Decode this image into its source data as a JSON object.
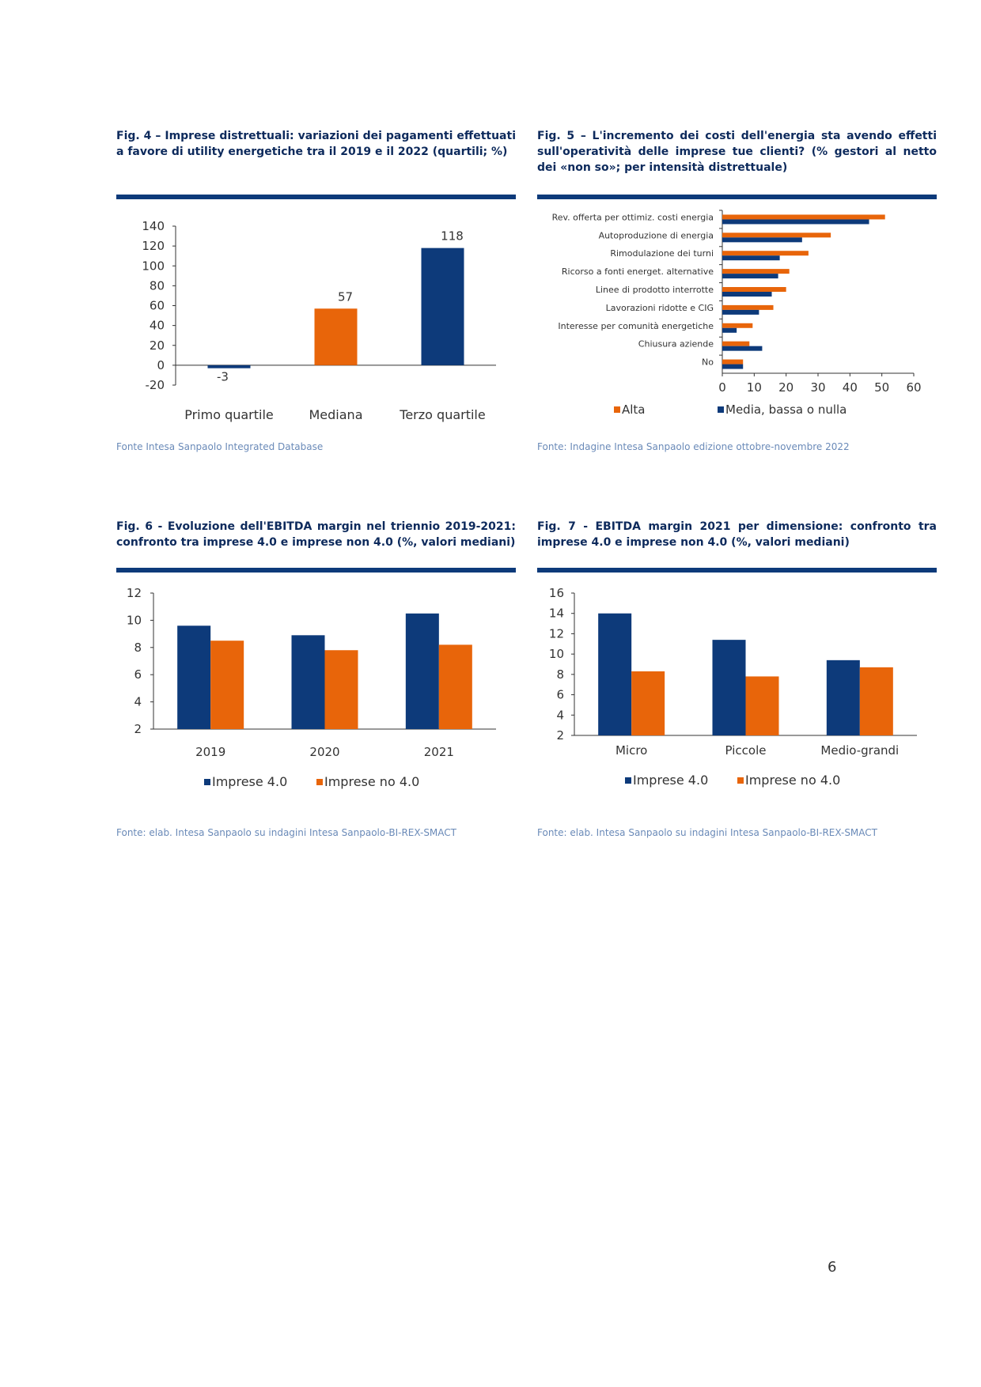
{
  "page_number": "6",
  "colors": {
    "navy": "#0d3a7a",
    "orange": "#e8650a",
    "title": "#0d2a5c",
    "source": "#6a8ab8"
  },
  "figures": [
    {
      "title": "Fig. 4 – Imprese distrettuali: variazioni dei pagamenti effettuati a favore di utility energetiche tra il 2019 e il 2022 (quartili; %)",
      "source": "Fonte Intesa Sanpaolo Integrated Database"
    },
    {
      "title": "Fig. 5 – L'incremento dei costi dell'energia sta avendo effetti sull'operatività delle imprese tue clienti? (% gestori al netto dei «non so»; per intensità distrettuale)",
      "source": "Fonte: Indagine Intesa Sanpaolo edizione ottobre-novembre 2022"
    },
    {
      "title": "Fig. 6 - Evoluzione dell'EBITDA margin nel triennio 2019-2021: confronto tra imprese 4.0 e imprese non 4.0 (%, valori mediani)",
      "source": "Fonte: elab. Intesa Sanpaolo su indagini Intesa Sanpaolo-BI-REX-SMACT"
    },
    {
      "title": "Fig. 7 - EBITDA margin 2021 per dimensione: confronto tra imprese 4.0 e imprese non 4.0 (%, valori mediani)",
      "source": "Fonte: elab. Intesa Sanpaolo su indagini Intesa Sanpaolo-BI-REX-SMACT"
    }
  ],
  "chart_data": [
    {
      "type": "bar",
      "orientation": "vertical",
      "categories": [
        "Primo quartile",
        "Mediana",
        "Terzo quartile"
      ],
      "values": [
        -3,
        57,
        118
      ],
      "data_labels": [
        "-3",
        "57",
        "118"
      ],
      "bar_colors": [
        "#0d3a7a",
        "#e8650a",
        "#0d3a7a"
      ],
      "ylim": [
        -20,
        140
      ],
      "yticks": [
        -20,
        0,
        20,
        40,
        60,
        80,
        100,
        120,
        140
      ],
      "legend": "none"
    },
    {
      "type": "bar",
      "orientation": "horizontal",
      "categories": [
        "Rev. offerta per ottimiz. costi energia",
        "Autoproduzione di energia",
        "Rimodulazione dei turni",
        "Ricorso a fonti energet. alternative",
        "Linee di prodotto interrotte",
        "Lavorazioni ridotte e CIG",
        "Interesse per comunità energetiche",
        "Chiusura aziende",
        "No"
      ],
      "series": [
        {
          "name": "Alta",
          "color": "#e8650a",
          "values": [
            51,
            34,
            27,
            21,
            20,
            16,
            9.5,
            8.5,
            6.5
          ]
        },
        {
          "name": "Media, bassa o nulla",
          "color": "#0d3a7a",
          "values": [
            46,
            25,
            18,
            17.5,
            15.5,
            11.5,
            4.5,
            12.5,
            6.5
          ]
        }
      ],
      "xlim": [
        0,
        60
      ],
      "xticks": [
        0,
        10,
        20,
        30,
        40,
        50,
        60
      ],
      "legend": "bottom"
    },
    {
      "type": "bar",
      "orientation": "vertical",
      "categories": [
        "2019",
        "2020",
        "2021"
      ],
      "series": [
        {
          "name": "Imprese 4.0",
          "color": "#0d3a7a",
          "values": [
            9.6,
            8.9,
            10.5
          ]
        },
        {
          "name": "Imprese no 4.0",
          "color": "#e8650a",
          "values": [
            8.5,
            7.8,
            8.2
          ]
        }
      ],
      "ylim": [
        2,
        12
      ],
      "yticks": [
        2,
        4,
        6,
        8,
        10,
        12
      ],
      "legend": "bottom"
    },
    {
      "type": "bar",
      "orientation": "vertical",
      "categories": [
        "Micro",
        "Piccole",
        "Medio-grandi"
      ],
      "series": [
        {
          "name": "Imprese 4.0",
          "color": "#0d3a7a",
          "values": [
            14,
            11.4,
            9.4
          ]
        },
        {
          "name": "Imprese no 4.0",
          "color": "#e8650a",
          "values": [
            8.3,
            7.8,
            8.7
          ]
        }
      ],
      "ylim": [
        2,
        16
      ],
      "yticks": [
        2,
        4,
        6,
        8,
        10,
        12,
        14,
        16
      ],
      "legend": "bottom"
    }
  ]
}
